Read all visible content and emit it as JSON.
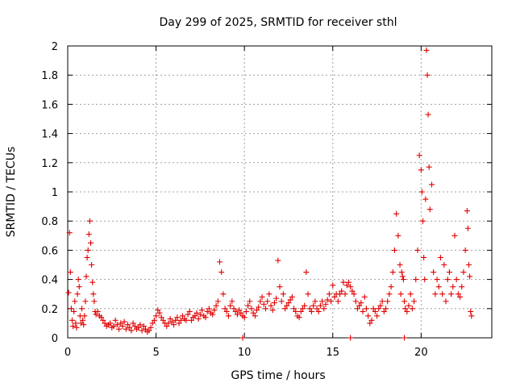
{
  "chart_data": {
    "type": "scatter",
    "title": "Day 299 of 2025, SRMTID for receiver sthl",
    "xlabel": "GPS time / hours",
    "ylabel": "SRMTID / TECUs",
    "xlim": [
      0,
      24
    ],
    "ylim": [
      0,
      2
    ],
    "xticks": [
      0,
      5,
      10,
      15,
      20
    ],
    "xtick_labels": [
      "0",
      "5",
      "10",
      "15",
      "20"
    ],
    "yticks": [
      0,
      0.2,
      0.4,
      0.6,
      0.8,
      1,
      1.2,
      1.4,
      1.6,
      1.8,
      2
    ],
    "ytick_labels": [
      "0",
      "0.2",
      "0.4",
      "0.6",
      "0.8",
      "1",
      "1.2",
      "1.4",
      "1.6",
      "1.8",
      "2"
    ],
    "grid": true,
    "marker": "plus",
    "color": "#e00000",
    "series": [
      {
        "name": "SRMTID",
        "x": [
          0.05,
          0.1,
          0.15,
          0.2,
          0.25,
          0.3,
          0.35,
          0.4,
          0.45,
          0.5,
          0.55,
          0.6,
          0.65,
          0.7,
          0.75,
          0.8,
          0.85,
          0.9,
          0.95,
          1.0,
          1.05,
          1.1,
          1.15,
          1.2,
          1.25,
          1.3,
          1.35,
          1.4,
          1.45,
          1.5,
          1.55,
          1.6,
          1.7,
          1.8,
          1.9,
          2.0,
          2.1,
          2.2,
          2.3,
          2.4,
          2.5,
          2.6,
          2.7,
          2.8,
          2.9,
          3.0,
          3.1,
          3.2,
          3.3,
          3.4,
          3.5,
          3.6,
          3.7,
          3.8,
          3.9,
          4.0,
          4.1,
          4.2,
          4.3,
          4.4,
          4.5,
          4.6,
          4.7,
          4.8,
          4.9,
          5.0,
          5.1,
          5.2,
          5.3,
          5.4,
          5.5,
          5.6,
          5.7,
          5.8,
          5.9,
          6.0,
          6.1,
          6.2,
          6.3,
          6.4,
          6.5,
          6.6,
          6.7,
          6.8,
          6.9,
          7.0,
          7.1,
          7.2,
          7.3,
          7.4,
          7.5,
          7.6,
          7.7,
          7.8,
          7.9,
          8.0,
          8.1,
          8.2,
          8.3,
          8.4,
          8.5,
          8.6,
          8.7,
          8.8,
          8.9,
          9.0,
          9.1,
          9.2,
          9.3,
          9.4,
          9.5,
          9.6,
          9.7,
          9.8,
          9.9,
          10.0,
          10.1,
          10.2,
          10.3,
          10.4,
          10.5,
          10.6,
          10.7,
          10.8,
          10.9,
          11.0,
          11.1,
          11.2,
          11.3,
          11.4,
          11.5,
          11.6,
          11.7,
          11.8,
          11.9,
          12.0,
          12.1,
          12.2,
          12.3,
          12.4,
          12.5,
          12.6,
          12.7,
          12.8,
          12.9,
          13.0,
          13.1,
          13.2,
          13.3,
          13.4,
          13.5,
          13.6,
          13.7,
          13.8,
          13.9,
          14.0,
          14.1,
          14.2,
          14.3,
          14.4,
          14.5,
          14.6,
          14.7,
          14.8,
          14.9,
          15.0,
          15.1,
          15.2,
          15.3,
          15.4,
          15.5,
          15.6,
          15.7,
          15.8,
          15.9,
          16.0,
          16.1,
          16.2,
          16.3,
          16.4,
          16.5,
          16.6,
          16.7,
          16.8,
          16.9,
          17.0,
          17.1,
          17.2,
          17.3,
          17.4,
          17.5,
          17.6,
          17.7,
          17.8,
          17.9,
          18.0,
          18.1,
          18.2,
          18.3,
          18.4,
          18.5,
          18.6,
          18.7,
          18.8,
          18.85,
          18.9,
          18.95,
          19.0,
          19.05,
          19.1,
          19.2,
          19.3,
          19.4,
          19.5,
          19.6,
          19.7,
          19.8,
          19.9,
          20.0,
          20.05,
          20.1,
          20.15,
          20.2,
          20.25,
          20.3,
          20.35,
          20.4,
          20.45,
          20.5,
          20.6,
          20.7,
          20.8,
          20.9,
          21.0,
          21.1,
          21.2,
          21.3,
          21.4,
          21.5,
          21.6,
          21.7,
          21.8,
          21.9,
          22.0,
          22.1,
          22.2,
          22.3,
          22.4,
          22.5,
          22.6,
          22.65,
          22.7,
          22.75,
          22.8,
          22.85,
          9.9,
          16.0,
          19.05
        ],
        "y": [
          0.31,
          0.72,
          0.45,
          0.2,
          0.12,
          0.08,
          0.18,
          0.25,
          0.1,
          0.07,
          0.3,
          0.4,
          0.35,
          0.15,
          0.1,
          0.2,
          0.12,
          0.09,
          0.15,
          0.25,
          0.42,
          0.55,
          0.6,
          0.71,
          0.8,
          0.65,
          0.5,
          0.38,
          0.3,
          0.25,
          0.18,
          0.16,
          0.18,
          0.15,
          0.14,
          0.12,
          0.1,
          0.08,
          0.09,
          0.1,
          0.07,
          0.08,
          0.12,
          0.09,
          0.06,
          0.1,
          0.08,
          0.11,
          0.06,
          0.09,
          0.07,
          0.05,
          0.1,
          0.08,
          0.06,
          0.07,
          0.09,
          0.05,
          0.08,
          0.06,
          0.04,
          0.05,
          0.07,
          0.1,
          0.12,
          0.15,
          0.19,
          0.17,
          0.14,
          0.12,
          0.1,
          0.08,
          0.1,
          0.13,
          0.11,
          0.09,
          0.12,
          0.14,
          0.1,
          0.12,
          0.15,
          0.13,
          0.12,
          0.16,
          0.18,
          0.12,
          0.14,
          0.15,
          0.17,
          0.13,
          0.16,
          0.19,
          0.15,
          0.14,
          0.18,
          0.2,
          0.17,
          0.16,
          0.19,
          0.22,
          0.25,
          0.52,
          0.45,
          0.3,
          0.2,
          0.18,
          0.15,
          0.22,
          0.25,
          0.2,
          0.18,
          0.16,
          0.19,
          0.17,
          0.15,
          0.14,
          0.18,
          0.22,
          0.25,
          0.2,
          0.17,
          0.15,
          0.19,
          0.21,
          0.25,
          0.28,
          0.23,
          0.2,
          0.25,
          0.3,
          0.22,
          0.19,
          0.24,
          0.27,
          0.53,
          0.35,
          0.25,
          0.3,
          0.2,
          0.22,
          0.24,
          0.26,
          0.28,
          0.2,
          0.18,
          0.15,
          0.14,
          0.18,
          0.2,
          0.22,
          0.45,
          0.3,
          0.2,
          0.18,
          0.22,
          0.25,
          0.2,
          0.18,
          0.22,
          0.25,
          0.2,
          0.23,
          0.26,
          0.3,
          0.25,
          0.36,
          0.28,
          0.3,
          0.25,
          0.3,
          0.32,
          0.38,
          0.3,
          0.36,
          0.38,
          0.35,
          0.32,
          0.3,
          0.25,
          0.2,
          0.22,
          0.24,
          0.18,
          0.28,
          0.2,
          0.15,
          0.1,
          0.12,
          0.2,
          0.18,
          0.15,
          0.2,
          0.22,
          0.25,
          0.18,
          0.2,
          0.25,
          0.3,
          0.35,
          0.45,
          0.6,
          0.85,
          0.7,
          0.5,
          0.3,
          0.45,
          0.42,
          0.4,
          0.25,
          0.2,
          0.18,
          0.22,
          0.3,
          0.2,
          0.25,
          0.4,
          0.6,
          1.25,
          1.15,
          1.0,
          0.8,
          0.55,
          0.4,
          0.95,
          1.97,
          1.8,
          1.53,
          1.17,
          0.88,
          1.05,
          0.45,
          0.3,
          0.4,
          0.35,
          0.55,
          0.3,
          0.5,
          0.25,
          0.4,
          0.45,
          0.3,
          0.35,
          0.7,
          0.4,
          0.3,
          0.28,
          0.35,
          0.45,
          0.6,
          0.87,
          0.75,
          0.5,
          0.42,
          0.18,
          0.15,
          0.0,
          0.0,
          0.0
        ]
      }
    ]
  }
}
